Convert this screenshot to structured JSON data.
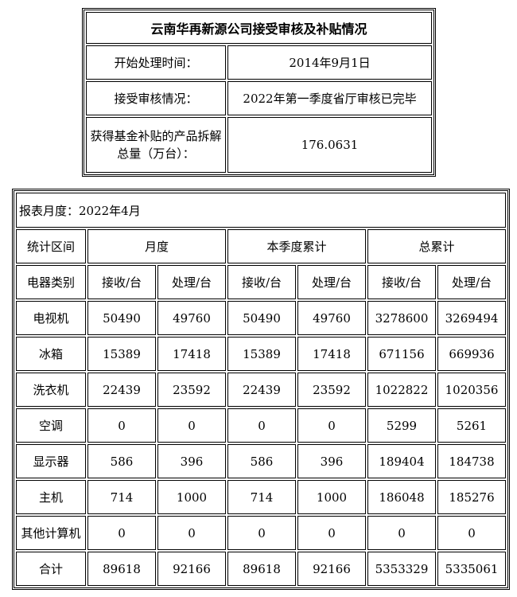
{
  "summary": {
    "title": "云南华再新源公司接受审核及补贴情况",
    "rows": [
      {
        "label": "开始处理时间：",
        "value": "2014年9月1日"
      },
      {
        "label": "接受审核情况：",
        "value": "2022年第一季度省厅审核已完毕"
      },
      {
        "label": "获得基金补贴的产品拆解总量（万台）：",
        "value": "176.0631"
      }
    ]
  },
  "report": {
    "month_label": "报表月度：2022年4月",
    "period_header": "统计区间",
    "periods": [
      "月度",
      "本季度累计",
      "总累计"
    ],
    "category_header": "电器类别",
    "subheaders": [
      "接收/台",
      "处理/台",
      "接收/台",
      "处理/台",
      "接收/台",
      "处理/台"
    ],
    "rows": [
      {
        "name": "电视机",
        "values": [
          "50490",
          "49760",
          "50490",
          "49760",
          "3278600",
          "3269494"
        ]
      },
      {
        "name": "冰箱",
        "values": [
          "15389",
          "17418",
          "15389",
          "17418",
          "671156",
          "669936"
        ]
      },
      {
        "name": "洗衣机",
        "values": [
          "22439",
          "23592",
          "22439",
          "23592",
          "1022822",
          "1020356"
        ]
      },
      {
        "name": "空调",
        "values": [
          "0",
          "0",
          "0",
          "0",
          "5299",
          "5261"
        ]
      },
      {
        "name": "显示器",
        "values": [
          "586",
          "396",
          "586",
          "396",
          "189404",
          "184738"
        ]
      },
      {
        "name": "主机",
        "values": [
          "714",
          "1000",
          "714",
          "1000",
          "186048",
          "185276"
        ]
      },
      {
        "name": "其他计算机",
        "values": [
          "0",
          "0",
          "0",
          "0",
          "0",
          "0"
        ]
      },
      {
        "name": "合计",
        "values": [
          "89618",
          "92166",
          "89618",
          "92166",
          "5353329",
          "5335061"
        ]
      }
    ]
  }
}
